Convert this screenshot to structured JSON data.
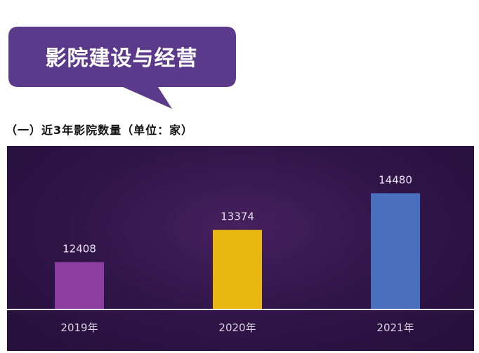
{
  "banner": {
    "title": "影院建设与经营",
    "color": "#5b3a8c"
  },
  "subtitle": "（一）近3年影院数量（单位：家）",
  "chart_data": {
    "type": "bar",
    "categories": [
      "2019年",
      "2020年",
      "2021年"
    ],
    "values": [
      12408,
      13374,
      14480
    ],
    "colors": [
      "#8b3da0",
      "#e8b810",
      "#4a6fbc"
    ],
    "ylim": [
      11000,
      15100
    ],
    "grid": false,
    "background": "#2f1446"
  }
}
